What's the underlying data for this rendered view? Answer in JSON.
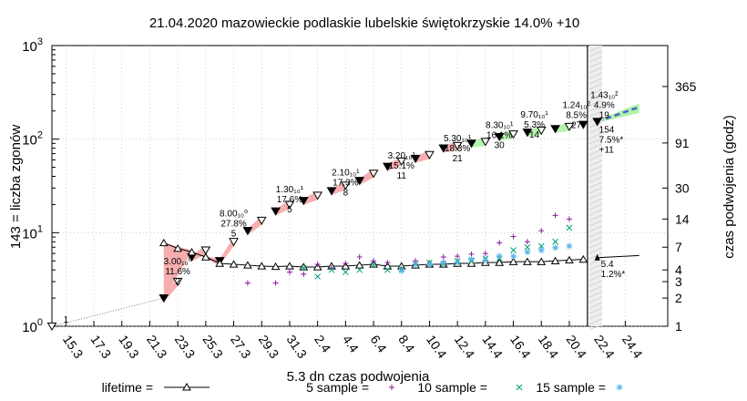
{
  "chart_data": {
    "type": "scatter",
    "title": "21.04.2020 mazowieckie podlaskie lubelskie świętokrzyskie 14.0% +10",
    "ylabel_left": "143 = liczba zgonów",
    "ylabel_right": "czas podwojenia (godz)",
    "xlabel": "5.3 dn czas podwojenia",
    "y_scale": "log",
    "ylim": [
      1,
      1000
    ],
    "xlim_days": [
      0,
      72
    ],
    "x_start_label": "14.3",
    "y_left_ticks": [
      {
        "value": 1,
        "base": "10",
        "exp": "0"
      },
      {
        "value": 10,
        "base": "10",
        "exp": "1"
      },
      {
        "value": 100,
        "base": "10",
        "exp": "2"
      },
      {
        "value": 1000,
        "base": "10",
        "exp": "3"
      }
    ],
    "y_right_ticks": [
      {
        "value": 365,
        "label": "365"
      },
      {
        "value": 91,
        "label": "91"
      },
      {
        "value": 30,
        "label": "30"
      },
      {
        "value": 14,
        "label": "14"
      },
      {
        "value": 7,
        "label": "7"
      },
      {
        "value": 4,
        "label": "4"
      },
      {
        "value": 3,
        "label": "3"
      },
      {
        "value": 2,
        "label": "2"
      },
      {
        "value": 1,
        "label": "1"
      }
    ],
    "x_ticks": [
      {
        "day": 1,
        "label": "15.3"
      },
      {
        "day": 3,
        "label": "17.3"
      },
      {
        "day": 5,
        "label": "19.3"
      },
      {
        "day": 7,
        "label": "21.3"
      },
      {
        "day": 9,
        "label": "23.3"
      },
      {
        "day": 11,
        "label": "25.3"
      },
      {
        "day": 13,
        "label": "27.3"
      },
      {
        "day": 15,
        "label": "29.3"
      },
      {
        "day": 17,
        "label": "31.3"
      },
      {
        "day": 19,
        "label": "2.4"
      },
      {
        "day": 21,
        "label": "4.4"
      },
      {
        "day": 23,
        "label": "6.4"
      },
      {
        "day": 25,
        "label": "8.4"
      },
      {
        "day": 27,
        "label": "10.4"
      },
      {
        "day": 29,
        "label": "12.4"
      },
      {
        "day": 31,
        "label": "14.4"
      },
      {
        "day": 33,
        "label": "16.4"
      },
      {
        "day": 35,
        "label": "18.4"
      },
      {
        "day": 37,
        "label": "20.4"
      },
      {
        "day": 39,
        "label": "22.4"
      },
      {
        "day": 41,
        "label": "24.4"
      }
    ],
    "today_day": 38,
    "deaths": {
      "x": [
        0,
        8,
        9,
        10,
        11,
        12,
        13,
        14,
        15,
        16,
        17,
        18,
        19,
        20,
        21,
        22,
        23,
        24,
        25,
        26,
        27,
        28,
        29,
        30,
        31,
        32,
        33,
        34,
        35,
        36,
        37,
        38
      ],
      "y": [
        1,
        2,
        3,
        5.5,
        6.5,
        5,
        8,
        10.5,
        13.5,
        17,
        20,
        22,
        25,
        28,
        32,
        36,
        43,
        51,
        58,
        62,
        68,
        80,
        85,
        90,
        94,
        106,
        113,
        118,
        124,
        129,
        136,
        143
      ]
    },
    "forecast": {
      "x": [
        39,
        42
      ],
      "y": [
        154,
        220
      ]
    },
    "doubling_lifetime": {
      "x": [
        8,
        9,
        10,
        11,
        12,
        13,
        14,
        15,
        16,
        17,
        18,
        19,
        20,
        21,
        22,
        23,
        24,
        25,
        26,
        27,
        28,
        29,
        30,
        31,
        32,
        33,
        34,
        35,
        36,
        37,
        38
      ],
      "y": [
        7.8,
        6.8,
        6.2,
        5.5,
        4.7,
        4.6,
        4.5,
        4.4,
        4.35,
        4.4,
        4.3,
        4.3,
        4.4,
        4.4,
        4.5,
        4.6,
        4.4,
        4.4,
        4.5,
        4.6,
        4.6,
        4.7,
        4.7,
        4.8,
        4.8,
        4.9,
        4.9,
        4.9,
        5.0,
        5.1,
        5.2
      ]
    },
    "doubling_forecast": {
      "x": [
        39,
        42
      ],
      "y": [
        5.4,
        5.7
      ]
    },
    "sample5": {
      "x": [
        14,
        16,
        17,
        18,
        19,
        20,
        21,
        22,
        23,
        24,
        25,
        26,
        27,
        28,
        29,
        30,
        31,
        32,
        33,
        34,
        35,
        36,
        37
      ],
      "y": [
        2.9,
        2.9,
        3.8,
        3.6,
        4.6,
        4.2,
        4.7,
        5.5,
        5.0,
        4.8,
        4.1,
        5.0,
        4.6,
        5.5,
        5.6,
        5.9,
        6.0,
        7.8,
        9.1,
        8.0,
        10.5,
        15.3,
        14.0
      ]
    },
    "sample10": {
      "x": [
        18,
        19,
        20,
        21,
        22,
        23,
        24,
        25,
        26,
        27,
        28,
        29,
        30,
        31,
        32,
        33,
        34,
        35,
        36,
        37
      ],
      "y": [
        4.2,
        3.4,
        4.0,
        3.8,
        4.0,
        4.5,
        4.0,
        4.1,
        4.6,
        4.8,
        4.6,
        5.0,
        5.0,
        5.3,
        5.3,
        6.5,
        7.0,
        7.2,
        8.0,
        11.3
      ]
    },
    "sample15": {
      "x": [
        25,
        26,
        27,
        28,
        29,
        30,
        31,
        32,
        33,
        34,
        35,
        36,
        37
      ],
      "y": [
        3.9,
        4.6,
        4.6,
        4.8,
        4.8,
        5.2,
        5.1,
        5.6,
        5.6,
        6.2,
        6.5,
        6.9,
        7.2
      ]
    },
    "annotations": [
      {
        "x": 1,
        "y": 1.1,
        "lines": [
          "1"
        ]
      },
      {
        "x": 9,
        "y": 4.6,
        "lines": [
          "3.00₁₀⁰",
          "11.6%",
          "2"
        ]
      },
      {
        "x": 13,
        "y": 15,
        "lines": [
          "8.00₁₀⁰",
          "27.8%",
          "5"
        ]
      },
      {
        "x": 17,
        "y": 27,
        "lines": [
          "1.30₁₀¹",
          "17.6%",
          "5"
        ]
      },
      {
        "x": 21,
        "y": 41,
        "lines": [
          "2.10₁₀¹",
          "17.3%",
          "8"
        ]
      },
      {
        "x": 25,
        "y": 62,
        "lines": [
          "3.20₁₀¹",
          "15.1%",
          "11"
        ]
      },
      {
        "x": 29,
        "y": 95,
        "lines": [
          "5.30₁₀¹",
          "18.3%",
          "21"
        ]
      },
      {
        "x": 32,
        "y": 132,
        "lines": [
          "8.30₁₀¹",
          "16.1%",
          "30"
        ]
      },
      {
        "x": 34.5,
        "y": 170,
        "lines": [
          "9.70₁₀¹",
          "5.3%",
          "14"
        ]
      },
      {
        "x": 37.5,
        "y": 215,
        "lines": [
          "1.24₁₀²",
          "8.5%",
          "27"
        ]
      },
      {
        "x": 39.5,
        "y": 275,
        "lines": [
          "1.43₁₀²",
          "4.9%",
          "19"
        ]
      }
    ],
    "forecast_labels": [
      "154",
      "7.5%*",
      "+11"
    ],
    "doubling_labels": [
      "5.4",
      "1.2%*"
    ],
    "legend": [
      {
        "label": "lifetime =",
        "marker": "triangle-line"
      },
      {
        "label": "5 sample =",
        "marker": "plus",
        "color": "#8b1a9b"
      },
      {
        "label": "10 sample =",
        "marker": "x",
        "color": "#009e73"
      },
      {
        "label": "15 sample =",
        "marker": "star",
        "color": "#56b4e9"
      }
    ],
    "colors": {
      "sample5": "#8b1a9b",
      "sample10": "#009e73",
      "sample15": "#56b4e9",
      "band_red": "#f4a0a0",
      "band_green": "#a8f0a0",
      "forecast_line": "#4466cc"
    }
  }
}
